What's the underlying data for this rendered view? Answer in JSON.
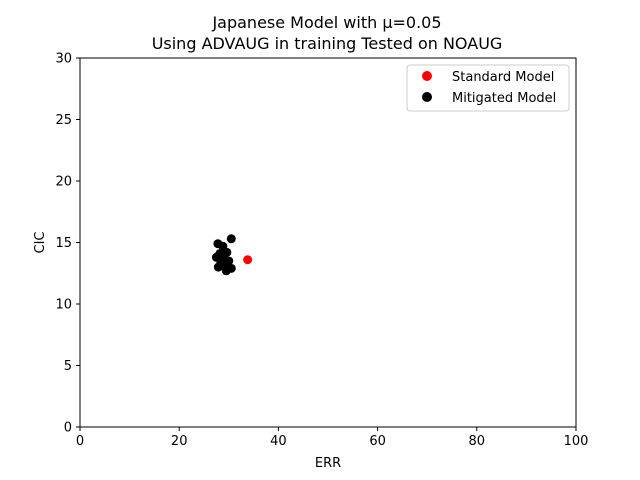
{
  "chart_data": {
    "type": "scatter",
    "title": [
      "Japanese Model with μ=0.05",
      "Using ADVAUG in training Tested on NOAUG"
    ],
    "xlabel": "ERR",
    "ylabel": "CIC",
    "xlim": [
      0,
      100
    ],
    "ylim": [
      0,
      30
    ],
    "xticks": [
      0,
      20,
      40,
      60,
      80,
      100
    ],
    "yticks": [
      0,
      5,
      10,
      15,
      20,
      25,
      30
    ],
    "grid": false,
    "legend_position": "top-right",
    "series": [
      {
        "name": "Standard Model",
        "color": "#ff0000",
        "points": [
          [
            33.8,
            13.6
          ]
        ]
      },
      {
        "name": "Mitigated Model",
        "color": "#000000",
        "points": [
          [
            30.5,
            15.3
          ],
          [
            27.8,
            14.9
          ],
          [
            28.8,
            14.7
          ],
          [
            29.6,
            14.2
          ],
          [
            28.2,
            14.1
          ],
          [
            27.5,
            13.8
          ],
          [
            29.0,
            13.9
          ],
          [
            30.0,
            13.5
          ],
          [
            28.4,
            13.4
          ],
          [
            29.3,
            13.2
          ],
          [
            27.9,
            13.0
          ],
          [
            30.5,
            12.9
          ],
          [
            29.5,
            12.7
          ]
        ]
      }
    ]
  }
}
